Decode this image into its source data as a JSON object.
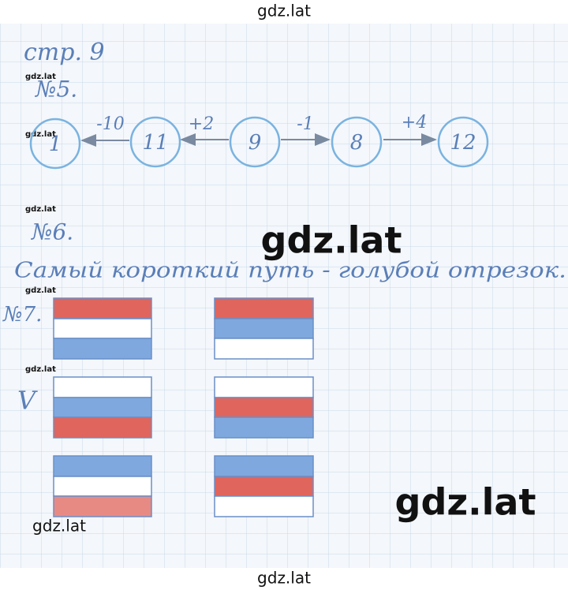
{
  "header": {
    "watermark": "gdz.lat",
    "page": "стр. 9"
  },
  "side_marks": [
    "gdz.lat",
    "gdz.lat",
    "gdz.lat",
    "gdz.lat",
    "gdz.lat"
  ],
  "task5": {
    "label": "№5.",
    "nodes": [
      "1",
      "11",
      "9",
      "8",
      "12"
    ],
    "edges": [
      "-10",
      "+2",
      "-1",
      "+4"
    ]
  },
  "task6": {
    "label": "№6.",
    "answer": "Самый короткий путь - голубой отрезок."
  },
  "task7": {
    "label": "№7.",
    "check": "V"
  },
  "watermarks": {
    "center": "gdz.lat",
    "lower_right": "gdz.lat",
    "lower_left": "gdz.lat",
    "footer": "gdz.lat"
  }
}
